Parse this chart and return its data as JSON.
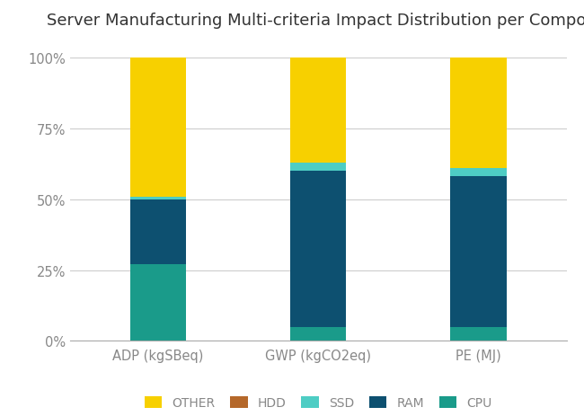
{
  "title": "Server Manufacturing Multi-criteria Impact Distribution per Component",
  "categories": [
    "ADP (kgSBeq)",
    "GWP (kgCO2eq)",
    "PE (MJ)"
  ],
  "components": [
    "CPU",
    "RAM",
    "SSD",
    "HDD",
    "OTHER"
  ],
  "colors": {
    "CPU": "#1a9b8a",
    "RAM": "#0d5070",
    "SSD": "#4ecdc4",
    "HDD": "#b5682a",
    "OTHER": "#f7d000"
  },
  "values": {
    "CPU": [
      27,
      5,
      5
    ],
    "RAM": [
      23,
      55,
      53
    ],
    "SSD": [
      1,
      3,
      3
    ],
    "HDD": [
      0,
      0,
      0
    ],
    "OTHER": [
      49,
      37,
      39
    ]
  },
  "ylim": [
    0,
    100
  ],
  "yticks": [
    0,
    25,
    50,
    75,
    100
  ],
  "ytick_labels": [
    "0%",
    "25%",
    "50%",
    "75%",
    "100%"
  ],
  "background_color": "#ffffff",
  "grid_color": "#cccccc",
  "bar_width": 0.35,
  "title_fontsize": 13,
  "legend_fontsize": 10,
  "tick_fontsize": 10.5,
  "tick_color": "#888888",
  "title_color": "#333333"
}
